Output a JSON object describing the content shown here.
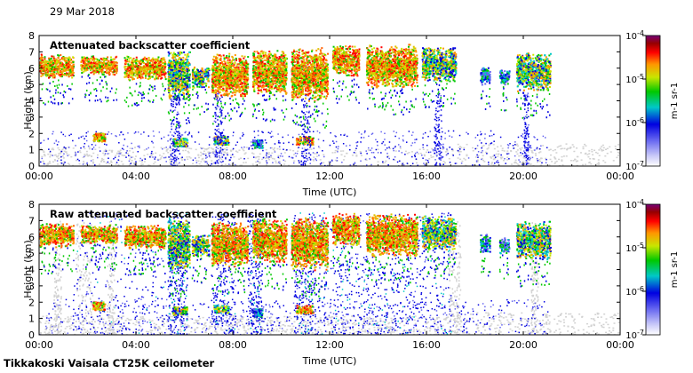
{
  "header": {
    "date": "29 Mar 2018"
  },
  "footer": {
    "station": "Tikkakoski Vaisala CT25K ceilometer"
  },
  "chart_data": [
    {
      "type": "heatmap",
      "title": "Attenuated backscatter coefficient",
      "xlabel": "Time (UTC)",
      "ylabel": "Height (km)",
      "x_ticks": [
        "00:00",
        "04:00",
        "08:00",
        "12:00",
        "16:00",
        "20:00",
        "00:00"
      ],
      "xlim_hours": [
        0,
        24
      ],
      "y_ticks": [
        0,
        1,
        2,
        3,
        4,
        5,
        6,
        7,
        8
      ],
      "ylim_km": [
        0,
        8
      ],
      "colorbar": {
        "label": "m-1 sr-1",
        "scale": "log",
        "ticks": [
          {
            "base": "10",
            "exp": "-7"
          },
          {
            "base": "10",
            "exp": "-6"
          },
          {
            "base": "10",
            "exp": "-5"
          },
          {
            "base": "10",
            "exp": "-4"
          }
        ],
        "colors": [
          "#ffffff",
          "#c8c8f8",
          "#6464f0",
          "#0000e0",
          "#00c8c8",
          "#00c800",
          "#c8e600",
          "#ff9600",
          "#ff0000",
          "#960000",
          "#780078"
        ]
      },
      "cloud_segments": [
        {
          "t0": 0.0,
          "t1": 1.4,
          "h0": 5.4,
          "h1": 6.9,
          "level": "high"
        },
        {
          "t0": 1.7,
          "t1": 3.2,
          "h0": 5.6,
          "h1": 6.8,
          "level": "high"
        },
        {
          "t0": 3.5,
          "t1": 5.2,
          "h0": 5.3,
          "h1": 6.8,
          "level": "high"
        },
        {
          "t0": 5.3,
          "t1": 6.2,
          "h0": 4.0,
          "h1": 7.2,
          "level": "mid"
        },
        {
          "t0": 6.3,
          "t1": 7.0,
          "h0": 4.8,
          "h1": 6.2,
          "level": "mid"
        },
        {
          "t0": 7.1,
          "t1": 8.6,
          "h0": 4.2,
          "h1": 7.0,
          "level": "high"
        },
        {
          "t0": 8.8,
          "t1": 10.2,
          "h0": 4.4,
          "h1": 7.2,
          "level": "high"
        },
        {
          "t0": 10.4,
          "t1": 11.9,
          "h0": 4.0,
          "h1": 7.3,
          "level": "high"
        },
        {
          "t0": 12.1,
          "t1": 13.2,
          "h0": 5.5,
          "h1": 7.5,
          "level": "high"
        },
        {
          "t0": 13.5,
          "t1": 15.6,
          "h0": 4.8,
          "h1": 7.5,
          "level": "high"
        },
        {
          "t0": 15.8,
          "t1": 17.2,
          "h0": 5.2,
          "h1": 7.4,
          "level": "mid"
        },
        {
          "t0": 18.2,
          "t1": 18.6,
          "h0": 5.0,
          "h1": 6.2,
          "level": "low"
        },
        {
          "t0": 19.0,
          "t1": 19.4,
          "h0": 5.0,
          "h1": 6.0,
          "level": "low"
        },
        {
          "t0": 19.7,
          "t1": 21.1,
          "h0": 4.6,
          "h1": 7.0,
          "level": "mid"
        }
      ],
      "low_layers": [
        {
          "t0": 2.2,
          "t1": 2.7,
          "h": 1.8,
          "level": "high"
        },
        {
          "t0": 5.5,
          "t1": 6.1,
          "h": 1.5,
          "level": "mid"
        },
        {
          "t0": 7.2,
          "t1": 7.8,
          "h": 1.6,
          "level": "mid"
        },
        {
          "t0": 8.8,
          "t1": 9.2,
          "h": 1.4,
          "level": "low"
        },
        {
          "t0": 10.6,
          "t1": 11.3,
          "h": 1.6,
          "level": "high"
        }
      ]
    },
    {
      "type": "heatmap",
      "title": "Raw attenuated backscatter coefficient",
      "xlabel": "Time (UTC)",
      "ylabel": "Height (km)",
      "x_ticks": [
        "00:00",
        "04:00",
        "08:00",
        "12:00",
        "16:00",
        "20:00",
        "00:00"
      ],
      "xlim_hours": [
        0,
        24
      ],
      "y_ticks": [
        0,
        1,
        2,
        3,
        4,
        5,
        6,
        7,
        8
      ],
      "ylim_km": [
        0,
        8
      ],
      "colorbar": {
        "label": "m-1 sr-1",
        "scale": "log",
        "ticks": [
          {
            "base": "10",
            "exp": "-7"
          },
          {
            "base": "10",
            "exp": "-6"
          },
          {
            "base": "10",
            "exp": "-5"
          },
          {
            "base": "10",
            "exp": "-4"
          }
        ],
        "colors": [
          "#ffffff",
          "#c8c8f8",
          "#6464f0",
          "#0000e0",
          "#00c8c8",
          "#00c800",
          "#c8e600",
          "#ff9600",
          "#ff0000",
          "#960000",
          "#780078"
        ]
      },
      "noise_bands": [
        {
          "t0": 5.3,
          "t1": 6.1,
          "density": "high"
        },
        {
          "t0": 7.1,
          "t1": 8.1,
          "density": "high"
        },
        {
          "t0": 8.6,
          "t1": 9.2,
          "density": "high"
        },
        {
          "t0": 10.5,
          "t1": 11.4,
          "density": "high"
        },
        {
          "t0": 11.5,
          "t1": 17.0,
          "density": "medium"
        },
        {
          "t0": 1.4,
          "t1": 5.2,
          "density": "low"
        }
      ]
    }
  ]
}
